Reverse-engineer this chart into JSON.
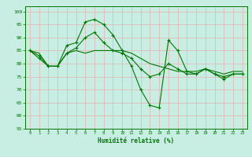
{
  "x": [
    0,
    1,
    2,
    3,
    4,
    5,
    6,
    7,
    8,
    9,
    10,
    11,
    12,
    13,
    14,
    15,
    16,
    17,
    18,
    19,
    20,
    21,
    22,
    23
  ],
  "line1": [
    85,
    82,
    79,
    79,
    87,
    88,
    96,
    97,
    95,
    91,
    85,
    79,
    70,
    64,
    63,
    89,
    85,
    77,
    76,
    78,
    76,
    74,
    76,
    76
  ],
  "line2": [
    85,
    83,
    79,
    79,
    84,
    86,
    90,
    92,
    88,
    85,
    84,
    82,
    78,
    75,
    76,
    80,
    78,
    76,
    76,
    78,
    76,
    75,
    76,
    76
  ],
  "line3": [
    85,
    84,
    79,
    79,
    84,
    85,
    84,
    85,
    85,
    85,
    85,
    84,
    82,
    80,
    79,
    78,
    77,
    77,
    77,
    78,
    77,
    76,
    77,
    77
  ],
  "bg_color": "#c8eee4",
  "grid_color": "#e8b0b0",
  "line_color": "#007700",
  "xlabel": "Humidité relative (%)",
  "ylim": [
    55,
    102
  ],
  "yticks": [
    55,
    60,
    65,
    70,
    75,
    80,
    85,
    90,
    95,
    100
  ],
  "xticks": [
    0,
    1,
    2,
    3,
    4,
    5,
    6,
    7,
    8,
    9,
    10,
    11,
    12,
    13,
    14,
    15,
    16,
    17,
    18,
    19,
    20,
    21,
    22,
    23
  ],
  "marker": "+"
}
